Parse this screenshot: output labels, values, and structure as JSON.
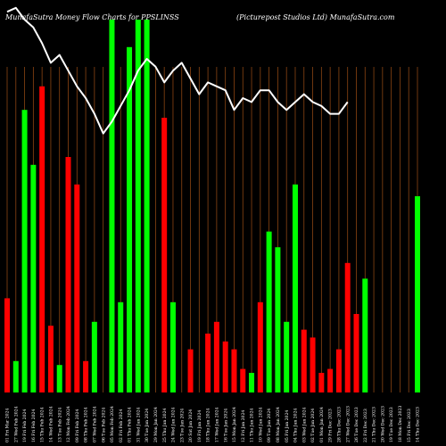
{
  "chart_data": {
    "type": "bar",
    "title": "MunafaSutra  Money Flow  Charts for PPSLINSS",
    "subtitle": "(Picturepost Studios Ltd) MunafaSutra.com",
    "xlabel": "",
    "ylabel": "",
    "grid": true,
    "ylim": [
      0,
      100
    ],
    "colors": {
      "background": "#000000",
      "up": "#00ff00",
      "down": "#ff0000",
      "grid": "#8b4513",
      "line": "#ffffff"
    },
    "categories": [
      "01 Fri Mar 2024",
      "27 Wed Feb 2024",
      "19 Fri Feb 2024",
      "16 Fri Feb 2024",
      "15 Thu Feb 2024",
      "14 Wed Feb 2024",
      "13 Tue Feb 2024",
      "12 Mon Feb 2024",
      "09 Fri Feb 2024",
      "08 Thu Feb 2024",
      "07 Wed Feb 2024",
      "06 Tue Feb 2024",
      "05 Mon Feb 2024",
      "02 Fri Feb 2024",
      "01 Thu Feb 2024",
      "31 Wed Jan 2024",
      "30 Tue Jan 2024",
      "29 Mon Jan 2024",
      "25 Thu Jan 2024",
      "24 Wed Jan 2024",
      "23 Tue Jan 2024",
      "20 Sat Jan 2024",
      "19 Fri Jan 2024",
      "18 Thu Jan 2024",
      "17 Wed Jan 2024",
      "16 Tue Jan 2024",
      "15 Mon Jan 2024",
      "12 Fri Jan 2024",
      "11 Thu Jan 2024",
      "10 Wed Jan 2024",
      "09 Tue Jan 2024",
      "08 Mon Jan 2024",
      "05 Fri Jan 2024",
      "04 Thu Jan 2024",
      "03 Wed Jan 2024",
      "02 Tue Jan 2024",
      "01 Mon Jan 2024",
      "29 Fri Dec 2023",
      "28 Thu Dec 2023",
      "27 Wed Dec 2023",
      "26 Tue Dec 2023",
      "22 Fri Dec 2023",
      "21 Thu Dec 2023",
      "20 Wed Dec 2023",
      "19 Tue Dec 2023",
      "18 Mon Dec 2023",
      "15 Fri Dec 2023",
      "14 Thu Dec 2023"
    ],
    "series": [
      {
        "colors": [
          "down",
          "up",
          "up",
          "up",
          "down",
          "down",
          "up",
          "down",
          "down",
          "down",
          "up",
          "down",
          "up",
          "up",
          "up",
          "up",
          "up",
          "up",
          "down",
          "up",
          "up",
          "down",
          "up",
          "down",
          "down",
          "down",
          "down",
          "down",
          "up",
          "down",
          "up",
          "up",
          "up",
          "up",
          "down",
          "down",
          "down",
          "down",
          "down",
          "down",
          "down",
          "up",
          "up",
          "up",
          "up",
          "up",
          "up",
          "up"
        ],
        "values": [
          24,
          8,
          72,
          58,
          78,
          17,
          7,
          60,
          53,
          8,
          18,
          0,
          95,
          23,
          88,
          95,
          95,
          0,
          70,
          23,
          0,
          11,
          0,
          15,
          18,
          13,
          11,
          6,
          5,
          23,
          41,
          37,
          18,
          53,
          16,
          14,
          5,
          6,
          11,
          33,
          20,
          29,
          0,
          0,
          0,
          0,
          0,
          50
        ]
      },
      {
        "values": [
          97,
          98,
          95,
          93,
          89,
          84,
          86,
          82,
          78,
          75,
          71,
          66,
          69,
          73,
          77,
          82,
          85,
          83,
          79,
          82,
          84,
          80,
          76,
          79,
          78,
          77,
          72,
          75,
          74,
          77,
          77,
          74,
          72,
          74,
          76,
          74,
          73,
          71,
          71,
          74,
          0,
          0,
          0,
          0,
          0,
          0,
          0,
          0
        ]
      }
    ]
  }
}
